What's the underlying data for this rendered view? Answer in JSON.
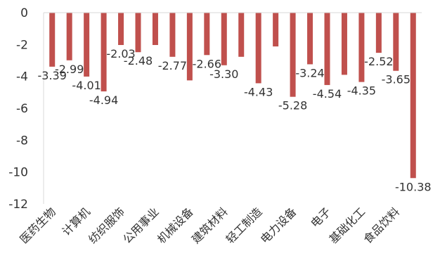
{
  "chart_data": {
    "type": "bar",
    "title": "",
    "xlabel": "",
    "ylabel": "",
    "ylim": [
      -12,
      0
    ],
    "yticks": [
      0,
      -2,
      -4,
      -6,
      -8,
      -10,
      -12
    ],
    "grid": false,
    "legend": "none",
    "bar_color": "#C0504D",
    "axis_color": "#D9D9D9",
    "text_color": "#333333",
    "categories": [
      "医药生物",
      "",
      "计算机",
      "",
      "纺织服饰",
      "",
      "公用事业",
      "",
      "机械设备",
      "",
      "建筑材料",
      "",
      "轻工制造",
      "",
      "电力设备",
      "",
      "电子",
      "",
      "基础化工",
      "",
      "食品饮料",
      ""
    ],
    "values": [
      -3.39,
      -2.99,
      -4.01,
      -4.94,
      -2.03,
      -2.48,
      -2.03,
      -2.77,
      -4.25,
      -2.66,
      -3.3,
      -2.77,
      -4.43,
      -2.12,
      -5.28,
      -3.24,
      -4.54,
      -3.9,
      -4.35,
      -2.52,
      -3.65,
      -10.38
    ],
    "data_labels": [
      "-3.39",
      "-2.99",
      "-4.01",
      "-4.94",
      "-2.03",
      "-2.48",
      "",
      "-2.77",
      "",
      "-2.66",
      "-3.30",
      "",
      "-4.43",
      "",
      "-5.28",
      "-3.24",
      "-4.54",
      "",
      "-4.35",
      "-2.52",
      "-3.65",
      "-10.38"
    ]
  }
}
